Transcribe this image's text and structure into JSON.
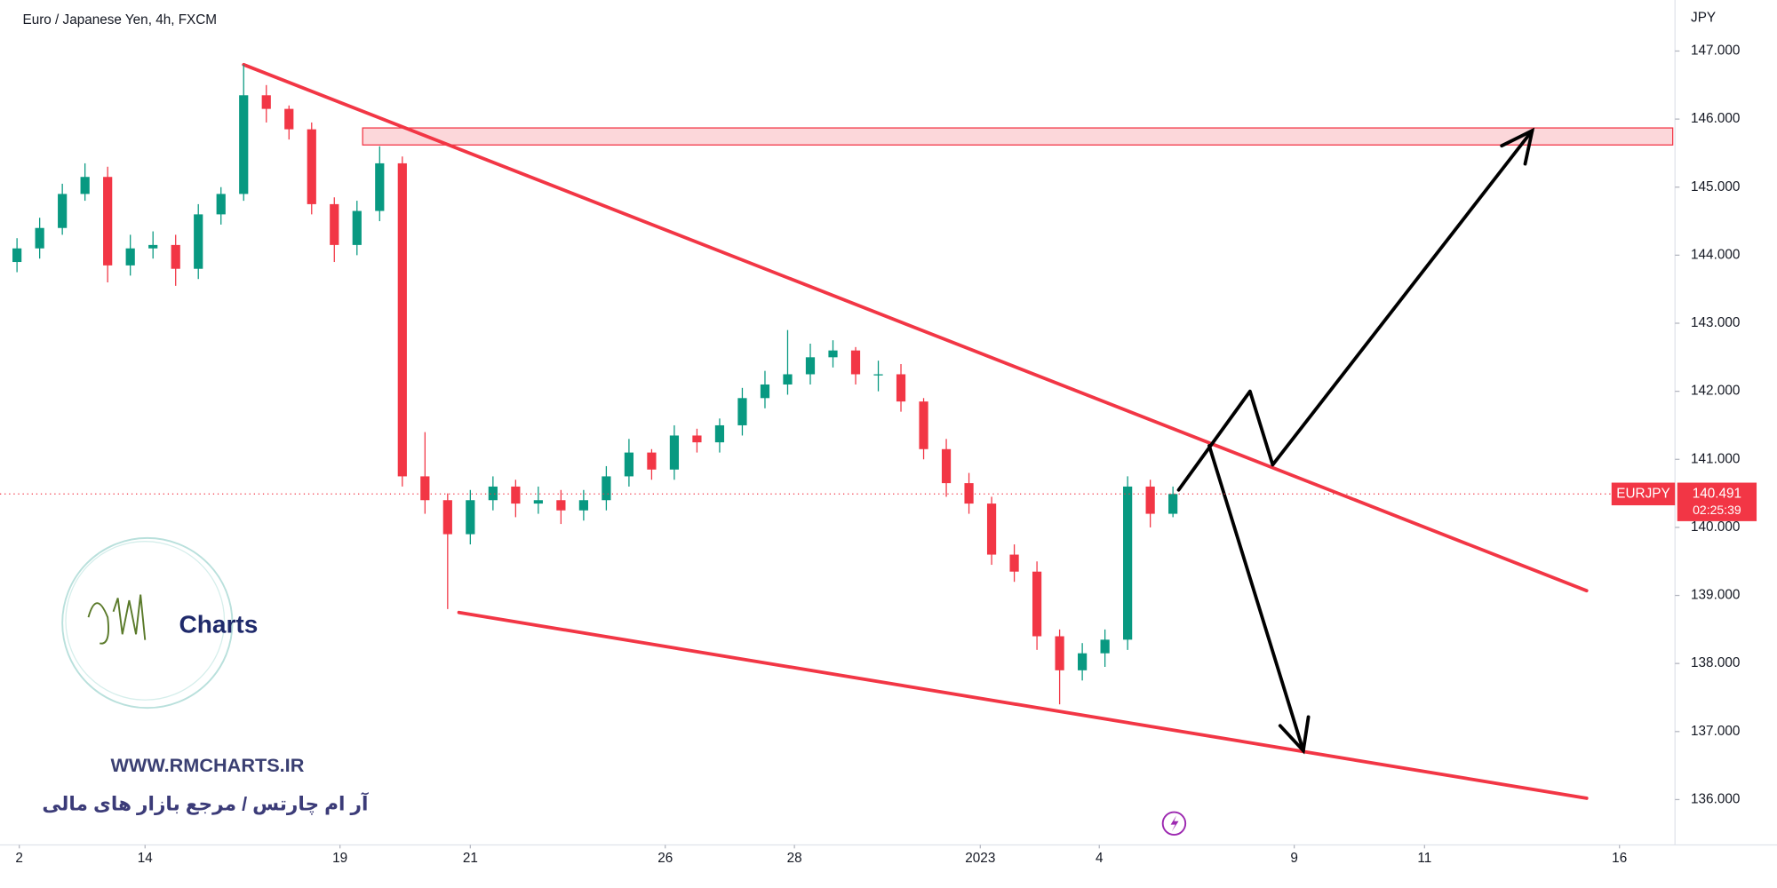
{
  "chart_data": {
    "type": "candlestick",
    "title": "Euro / Japanese Yen, 4h, FXCM",
    "y_axis_label": "JPY",
    "up_color": "#089981",
    "down_color": "#f23645",
    "open": [
      143.9,
      144.1,
      144.4,
      144.9,
      145.15,
      143.85,
      144.1,
      144.15,
      143.8,
      144.6,
      144.9,
      146.35,
      146.15,
      145.85,
      144.75,
      144.15,
      144.65,
      145.35,
      140.75,
      140.4,
      139.9,
      140.4,
      140.6,
      140.35,
      140.4,
      140.25,
      140.4,
      140.75,
      141.1,
      140.85,
      141.35,
      141.25,
      141.5,
      141.9,
      142.1,
      142.25,
      142.5,
      142.6,
      142.25,
      142.25,
      141.85,
      141.15,
      140.65,
      140.35,
      139.6,
      139.35,
      138.4,
      137.9,
      138.15,
      138.35,
      140.6,
      140.2
    ],
    "high": [
      144.25,
      144.55,
      145.05,
      145.35,
      145.3,
      144.3,
      144.35,
      144.3,
      144.75,
      145.0,
      146.8,
      146.5,
      146.2,
      145.95,
      144.85,
      144.8,
      145.6,
      145.45,
      141.4,
      140.5,
      140.55,
      140.75,
      140.7,
      140.6,
      140.55,
      140.55,
      140.9,
      141.3,
      141.15,
      141.5,
      141.45,
      141.6,
      142.05,
      142.3,
      142.9,
      142.7,
      142.75,
      142.65,
      142.45,
      142.4,
      141.9,
      141.3,
      140.8,
      140.45,
      139.75,
      139.5,
      138.5,
      138.3,
      138.5,
      140.75,
      140.7,
      140.6
    ],
    "low": [
      143.75,
      143.95,
      144.3,
      144.8,
      143.6,
      143.7,
      143.95,
      143.55,
      143.65,
      144.45,
      144.8,
      145.95,
      145.7,
      144.6,
      143.9,
      144.0,
      144.5,
      140.6,
      140.2,
      138.8,
      139.75,
      140.25,
      140.15,
      140.2,
      140.05,
      140.1,
      140.25,
      140.6,
      140.7,
      140.7,
      141.1,
      141.1,
      141.35,
      141.75,
      141.95,
      142.1,
      142.35,
      142.1,
      142.0,
      141.7,
      141.0,
      140.45,
      140.2,
      139.45,
      139.2,
      138.2,
      137.4,
      137.75,
      137.95,
      138.2,
      140.0,
      140.15
    ],
    "close": [
      144.1,
      144.4,
      144.9,
      145.15,
      143.85,
      144.1,
      144.15,
      143.8,
      144.6,
      144.9,
      146.35,
      146.15,
      145.85,
      144.75,
      144.15,
      144.65,
      145.35,
      140.75,
      140.4,
      139.9,
      140.4,
      140.6,
      140.35,
      140.4,
      140.25,
      140.4,
      140.75,
      141.1,
      140.85,
      141.35,
      141.25,
      141.5,
      141.9,
      142.1,
      142.25,
      142.5,
      142.6,
      142.25,
      142.25,
      141.85,
      141.15,
      140.65,
      140.35,
      139.6,
      139.35,
      138.4,
      137.9,
      138.15,
      138.35,
      140.6,
      140.2,
      140.491
    ],
    "xlim": [
      -0.75,
      73.15
    ],
    "xticks": [
      {
        "value": 0.1,
        "label": "2"
      },
      {
        "value": 5.65,
        "label": "14"
      },
      {
        "value": 14.25,
        "label": "19"
      },
      {
        "value": 20,
        "label": "21"
      },
      {
        "value": 28.6,
        "label": "26"
      },
      {
        "value": 34.3,
        "label": "28"
      },
      {
        "value": 42.5,
        "label": "2023"
      },
      {
        "value": 47.75,
        "label": "4"
      },
      {
        "value": 56.35,
        "label": "9"
      },
      {
        "value": 62.1,
        "label": "11"
      },
      {
        "value": 70.7,
        "label": "16"
      }
    ],
    "ylim": [
      135.35,
      147.75
    ],
    "yticks": [
      {
        "value": 136,
        "label": "136.000"
      },
      {
        "value": 137,
        "label": "137.000"
      },
      {
        "value": 138,
        "label": "138.000"
      },
      {
        "value": 139,
        "label": "139.000"
      },
      {
        "value": 140,
        "label": "140.000"
      },
      {
        "value": 141,
        "label": "141.000"
      },
      {
        "value": 142,
        "label": "142.000"
      },
      {
        "value": 143,
        "label": "143.000"
      },
      {
        "value": 144,
        "label": "144.000"
      },
      {
        "value": 145,
        "label": "145.000"
      },
      {
        "value": 146,
        "label": "146.000"
      },
      {
        "value": 147,
        "label": "147.000"
      }
    ],
    "last_price": {
      "symbol": "EURJPY",
      "value": 140.491,
      "countdown": "02:25:39",
      "color": "#f23645"
    },
    "zone": {
      "color": "#f23645",
      "x": [
        15.25,
        73.05
      ],
      "y": [
        145.87,
        145.62
      ]
    },
    "trendlines": [
      {
        "color": "#f23645",
        "x": [
          10,
          69.25
        ],
        "y": [
          146.8,
          139.07
        ]
      },
      {
        "color": "#f23645",
        "x": [
          19.5,
          69.25
        ],
        "y": [
          138.75,
          136.02
        ]
      }
    ],
    "arrows": [
      {
        "color": "#000000",
        "x": [
          51.25,
          54.4,
          55.4,
          66.85
        ],
        "y": [
          140.55,
          142.0,
          140.92,
          145.83
        ]
      },
      {
        "color": "#000000",
        "x": [
          52.6,
          56.75
        ],
        "y": [
          141.2,
          136.72
        ]
      }
    ]
  },
  "watermark": {
    "brand": "Charts",
    "url": "WWW.RMCHARTS.IR",
    "tagline": "آر ام چارتس / مرجع بازار های مالی"
  }
}
